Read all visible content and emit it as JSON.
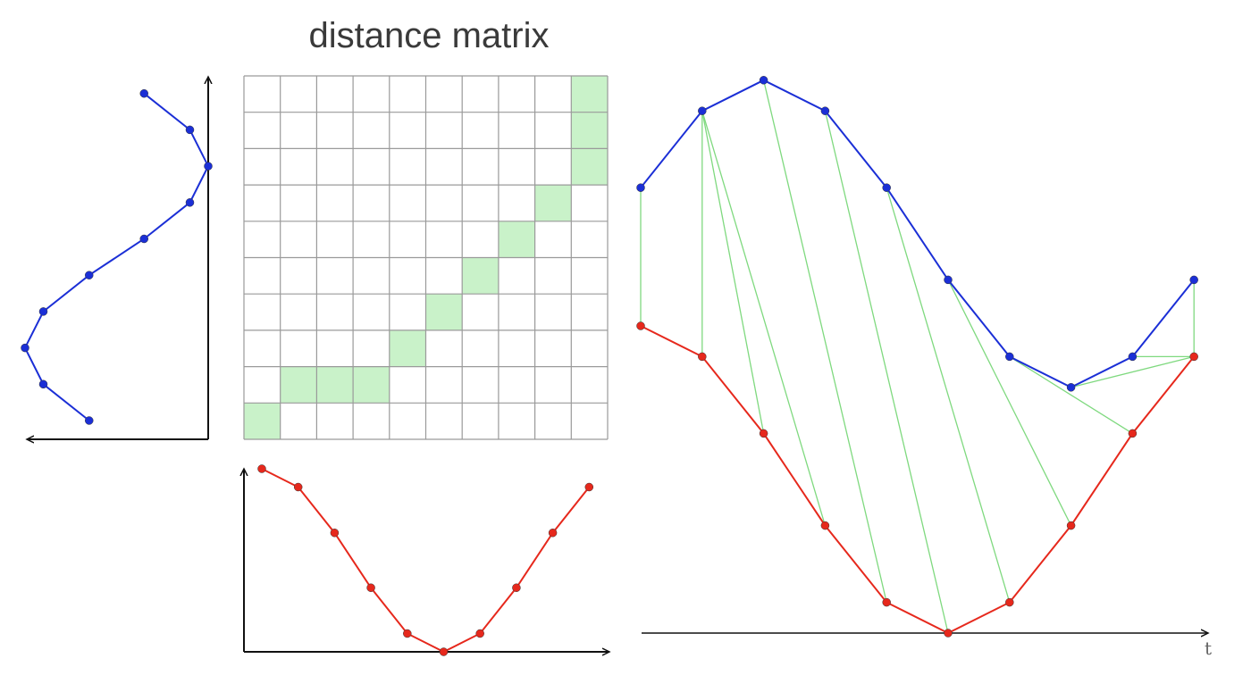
{
  "title": "distance matrix",
  "axis_label_t": "t",
  "colors": {
    "series_a": "#1b2fd6",
    "series_b": "#e6281c",
    "warp_link": "#7fd97f",
    "path_cell": "#c9f2c9",
    "grid": "#9a9a9a",
    "axis": "#111111"
  },
  "chart_data": {
    "type": "diagram",
    "series": [
      {
        "values": [
          0.65,
          0.9,
          1.0,
          0.9,
          0.65,
          0.35,
          0.1,
          0.0,
          0.1,
          0.35
        ]
      },
      {
        "values": [
          1.0,
          0.9,
          0.65,
          0.35,
          0.1,
          0.0,
          0.1,
          0.35,
          0.65,
          0.9
        ]
      }
    ],
    "matrix_size": 10,
    "warping_path": [
      [
        0,
        0
      ],
      [
        1,
        1
      ],
      [
        1,
        2
      ],
      [
        1,
        3
      ],
      [
        2,
        4
      ],
      [
        3,
        5
      ],
      [
        4,
        6
      ],
      [
        5,
        7
      ],
      [
        6,
        8
      ],
      [
        7,
        9
      ],
      [
        8,
        9
      ],
      [
        9,
        9
      ]
    ]
  }
}
